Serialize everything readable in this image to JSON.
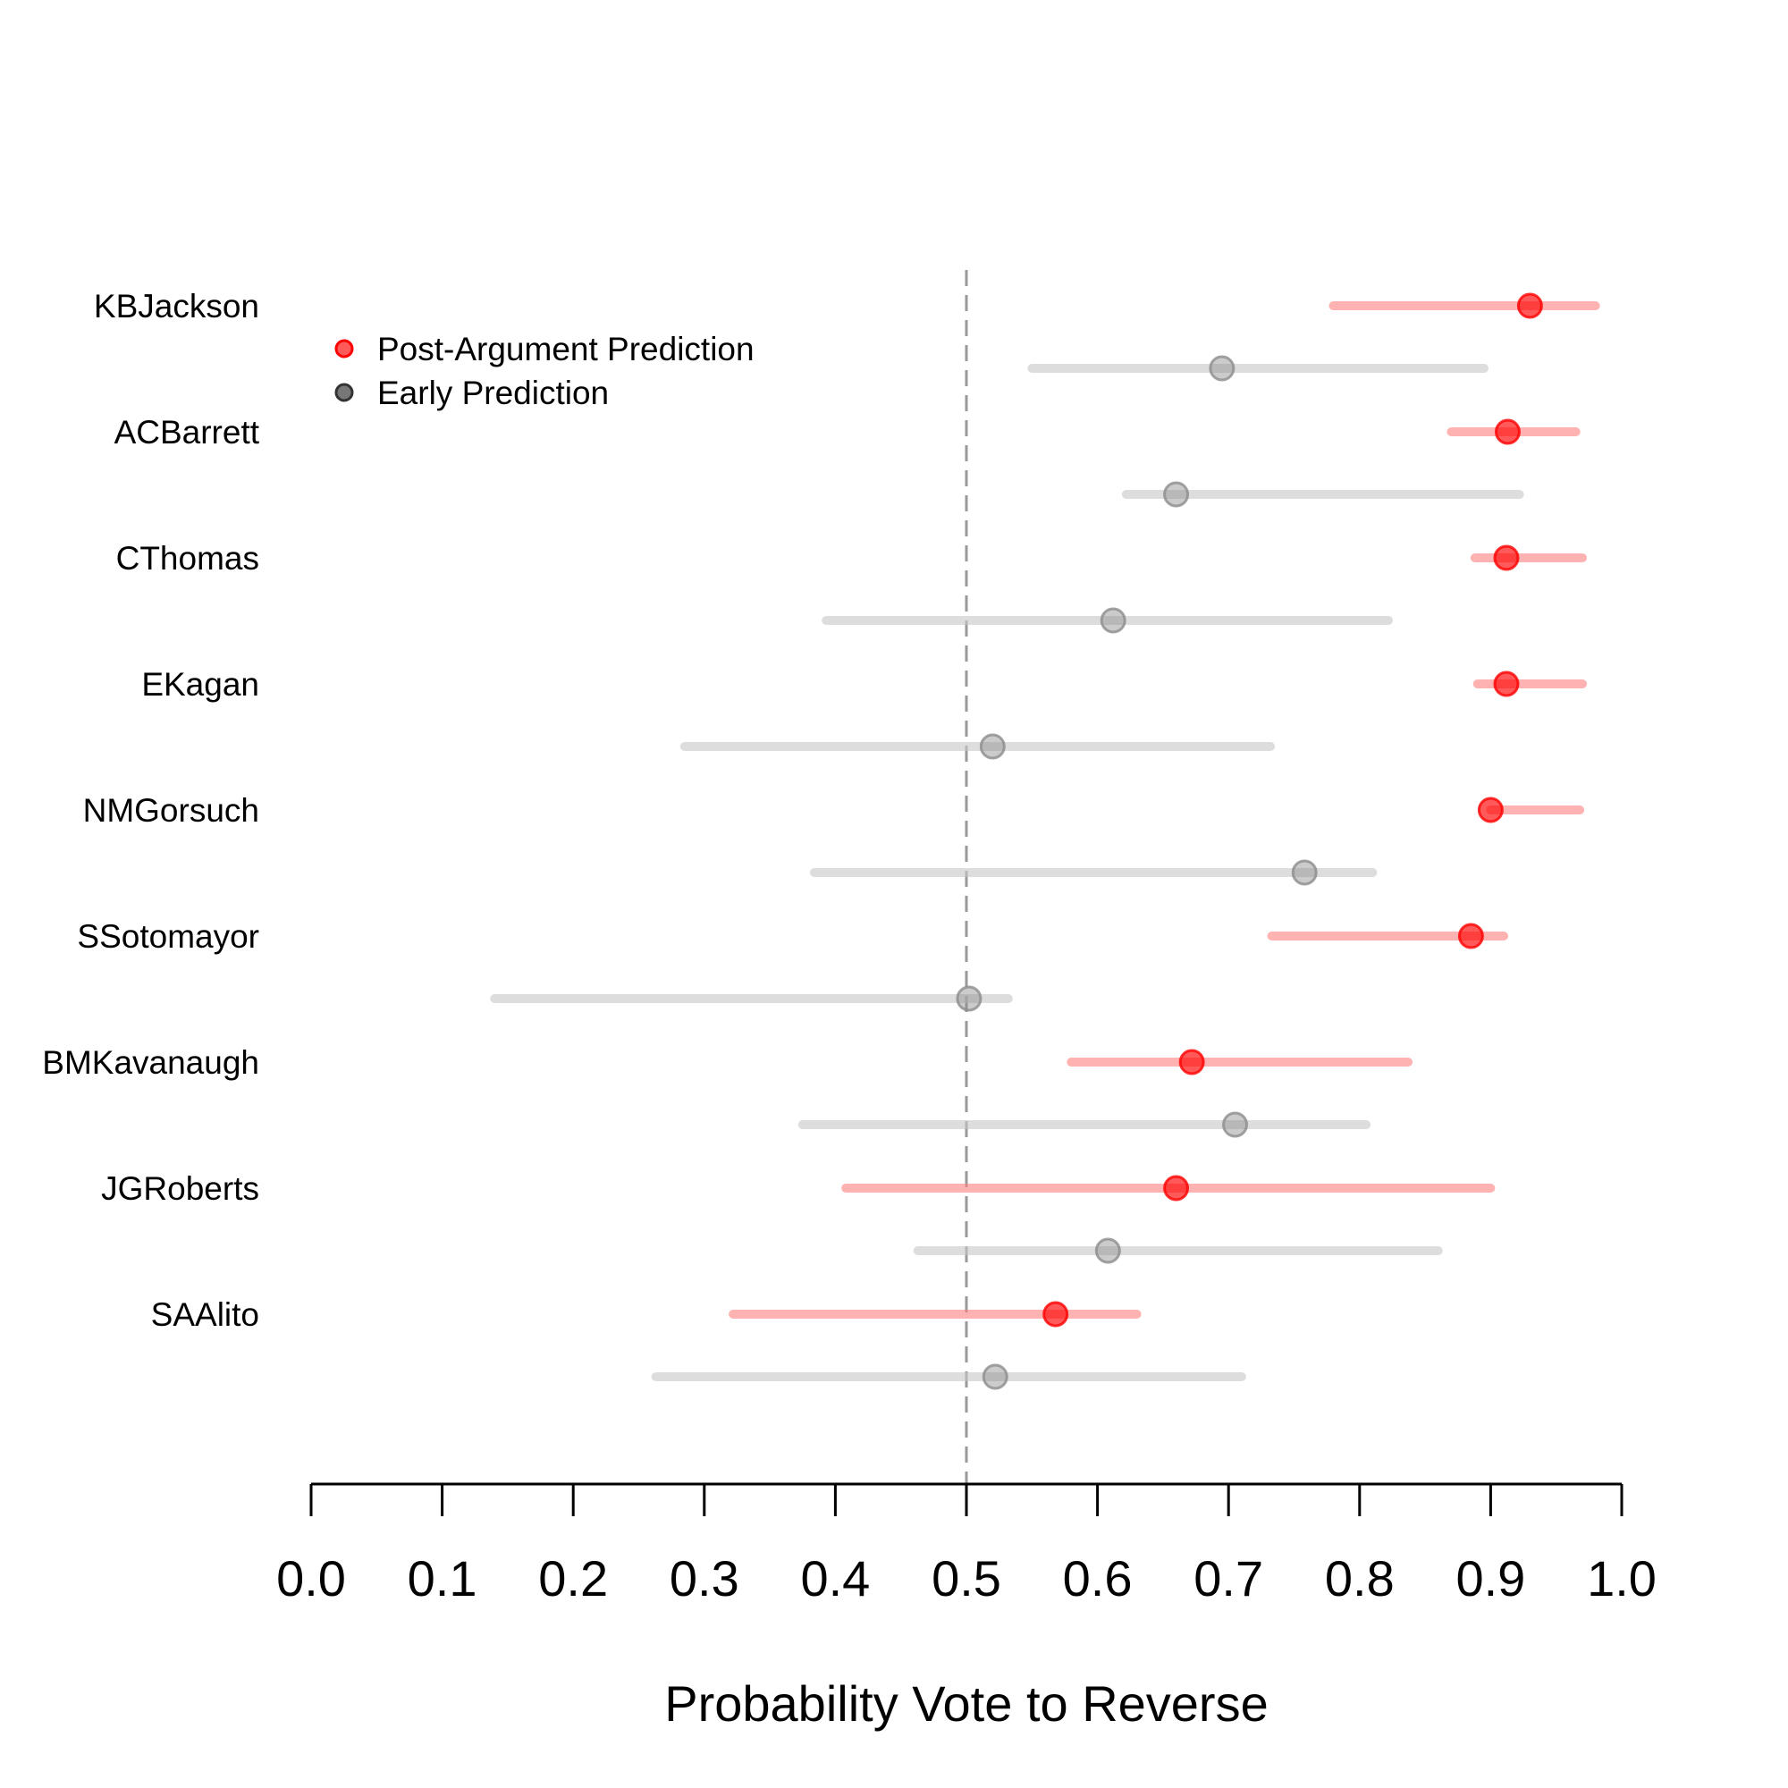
{
  "chart_data": {
    "type": "dot-interval",
    "xlabel": "Probability Vote to Reverse",
    "xlim": [
      0.0,
      1.0
    ],
    "xticks": [
      "0.0",
      "0.1",
      "0.2",
      "0.3",
      "0.4",
      "0.5",
      "0.6",
      "0.7",
      "0.8",
      "0.9",
      "1.0"
    ],
    "reference_line": 0.5,
    "colors": {
      "post": "#ff0000",
      "post_interval": "#ff8080",
      "early": "#8c8c8c",
      "early_interval": "#c8c8c8",
      "axis": "#000000",
      "reference": "#999999"
    },
    "legend": {
      "placement": "top-left",
      "items": [
        {
          "key": "post",
          "label": "Post-Argument Prediction"
        },
        {
          "key": "early",
          "label": "Early Prediction"
        }
      ]
    },
    "justices": [
      {
        "name": "KBJackson",
        "post": {
          "value": 0.93,
          "low": 0.78,
          "high": 0.98
        },
        "early": {
          "value": 0.695,
          "low": 0.55,
          "high": 0.895
        }
      },
      {
        "name": "ACBarrett",
        "post": {
          "value": 0.913,
          "low": 0.87,
          "high": 0.965
        },
        "early": {
          "value": 0.66,
          "low": 0.622,
          "high": 0.922
        }
      },
      {
        "name": "CThomas",
        "post": {
          "value": 0.912,
          "low": 0.888,
          "high": 0.97
        },
        "early": {
          "value": 0.612,
          "low": 0.393,
          "high": 0.822
        }
      },
      {
        "name": "EKagan",
        "post": {
          "value": 0.912,
          "low": 0.89,
          "high": 0.97
        },
        "early": {
          "value": 0.52,
          "low": 0.285,
          "high": 0.732
        }
      },
      {
        "name": "NMGorsuch",
        "post": {
          "value": 0.9,
          "low": 0.9,
          "high": 0.968
        },
        "early": {
          "value": 0.758,
          "low": 0.384,
          "high": 0.81
        }
      },
      {
        "name": "SSotomayor",
        "post": {
          "value": 0.885,
          "low": 0.733,
          "high": 0.91
        },
        "early": {
          "value": 0.502,
          "low": 0.14,
          "high": 0.532
        }
      },
      {
        "name": "BMKavanaugh",
        "post": {
          "value": 0.672,
          "low": 0.58,
          "high": 0.837
        },
        "early": {
          "value": 0.705,
          "low": 0.375,
          "high": 0.805
        }
      },
      {
        "name": "JGRoberts",
        "post": {
          "value": 0.66,
          "low": 0.408,
          "high": 0.9
        },
        "early": {
          "value": 0.608,
          "low": 0.463,
          "high": 0.86
        }
      },
      {
        "name": "SAAlito",
        "post": {
          "value": 0.568,
          "low": 0.322,
          "high": 0.63
        },
        "early": {
          "value": 0.522,
          "low": 0.263,
          "high": 0.71
        }
      }
    ]
  }
}
